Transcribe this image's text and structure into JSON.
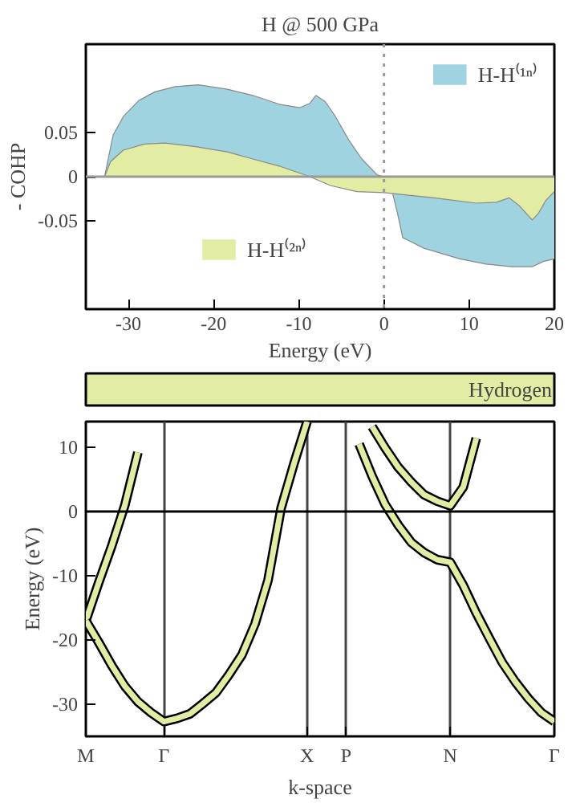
{
  "chart_data": [
    {
      "type": "area",
      "title": "H @ 500 GPa",
      "xlabel": "Energy (eV)",
      "ylabel": "- COHP",
      "xlim": [
        -35,
        20
      ],
      "ylim": [
        -0.15,
        0.15
      ],
      "xticks": [
        -30,
        -20,
        -10,
        0,
        10,
        20
      ],
      "yticks": [
        {
          "value": -0.05,
          "label": "-0.05"
        },
        0,
        {
          "value": 0.05,
          "label": "0.05"
        }
      ],
      "grid": false,
      "legend": "top right",
      "series": [
        {
          "name": "H-H⁽¹ⁿ⁾",
          "color": "#9fd3e0",
          "x": [
            -32.8,
            -31.8,
            -30.6,
            -28.8,
            -26.9,
            -24.5,
            -21.8,
            -18.4,
            -15.4,
            -12.3,
            -9.9,
            -8.7,
            -8.0,
            -6.9,
            -5.7,
            -4.1,
            -2.6,
            -0.8,
            0,
            1.0,
            1.6,
            2.2,
            4.7,
            8.9,
            12.0,
            15.0,
            17.4,
            18.7,
            20
          ],
          "values": [
            0,
            0.047,
            0.068,
            0.086,
            0.096,
            0.102,
            0.104,
            0.099,
            0.092,
            0.082,
            0.078,
            0.083,
            0.092,
            0.085,
            0.068,
            0.041,
            0.02,
            0.002,
            0,
            -0.018,
            -0.042,
            -0.069,
            -0.081,
            -0.093,
            -0.099,
            -0.102,
            -0.102,
            -0.096,
            -0.093
          ]
        },
        {
          "name": "H-H⁽²ⁿ⁾",
          "color": "#e2eca3",
          "x": [
            -32.8,
            -32.1,
            -30.6,
            -28.1,
            -25.7,
            -22.1,
            -18.4,
            -15.4,
            -12.3,
            -8.7,
            -6.3,
            -3.2,
            0,
            2.9,
            5.9,
            10.8,
            13.2,
            14.7,
            15.9,
            17.4,
            18.1,
            19.0,
            20
          ],
          "values": [
            0,
            0.017,
            0.03,
            0.037,
            0.038,
            0.034,
            0.028,
            0.02,
            0.012,
            0,
            -0.01,
            -0.017,
            -0.018,
            -0.021,
            -0.024,
            -0.03,
            -0.029,
            -0.024,
            -0.033,
            -0.049,
            -0.042,
            -0.027,
            -0.017
          ]
        }
      ],
      "ref_lines": [
        {
          "axis": "x",
          "value": 0,
          "color": "#999999",
          "line_style": "dotted"
        },
        {
          "axis": "y",
          "value": 0,
          "color": "#999999",
          "line_style": "solid"
        }
      ]
    },
    {
      "type": "line",
      "title": "Hydrogen",
      "xlabel": "k-space",
      "ylabel": "Energy (eV)",
      "categories": [
        "M",
        null,
        null,
        null,
        null,
        null,
        "Γ",
        null,
        null,
        null,
        null,
        null,
        null,
        null,
        null,
        null,
        null,
        "X",
        null,
        null,
        "P",
        null,
        null,
        null,
        null,
        null,
        null,
        null,
        "N",
        null,
        null,
        null,
        null,
        null,
        null,
        null,
        "Γ"
      ],
      "ylim": [
        -35,
        14
      ],
      "yticks": [
        -30,
        -20,
        -10,
        0,
        10
      ],
      "grid": "x",
      "line_style": "solid",
      "series": [
        {
          "color": "#e2eca3",
          "values": [
            -17.0,
            -11.0,
            -5.3,
            1.0,
            9.2,
            null,
            null,
            null,
            null,
            null,
            null,
            null,
            null,
            null,
            null,
            null,
            null,
            null,
            null,
            null,
            null,
            null,
            null,
            null,
            null,
            null,
            null,
            null,
            null,
            null,
            null,
            null,
            null,
            null,
            null,
            null,
            null
          ]
        },
        {
          "color": "#e2eca3",
          "values": [
            -17.0,
            -20.4,
            -24.0,
            -27.2,
            -29.6,
            -31.3,
            -32.7,
            -32.2,
            -31.5,
            -29.9,
            -28.2,
            -25.4,
            -22.3,
            -17.5,
            -10.7,
            0.5,
            7.5,
            14.0,
            null,
            null,
            null,
            null,
            null,
            null,
            null,
            null,
            null,
            null,
            null,
            null,
            null,
            null,
            null,
            null,
            null,
            null,
            null
          ]
        },
        {
          "color": "#e2eca3",
          "values": [
            null,
            null,
            null,
            null,
            null,
            null,
            null,
            null,
            null,
            null,
            null,
            null,
            null,
            null,
            null,
            null,
            null,
            null,
            null,
            null,
            null,
            10.5,
            5.5,
            1.1,
            -2.1,
            -4.8,
            -6.4,
            -7.5,
            -7.9,
            -11.5,
            -15.8,
            -19.7,
            -23.5,
            -26.5,
            -29.1,
            -31.3,
            -32.7
          ]
        },
        {
          "color": "#e2eca3",
          "values": [
            null,
            null,
            null,
            null,
            null,
            null,
            null,
            null,
            null,
            null,
            null,
            null,
            null,
            null,
            null,
            null,
            null,
            null,
            null,
            null,
            null,
            null,
            13.2,
            9.9,
            6.9,
            4.6,
            2.6,
            1.6,
            0.9,
            3.8,
            11.4,
            null,
            null,
            null,
            null,
            null,
            null
          ]
        }
      ],
      "ref_lines": [
        {
          "axis": "y",
          "value": 0,
          "color": "#000000",
          "line_style": "solid"
        }
      ]
    }
  ]
}
